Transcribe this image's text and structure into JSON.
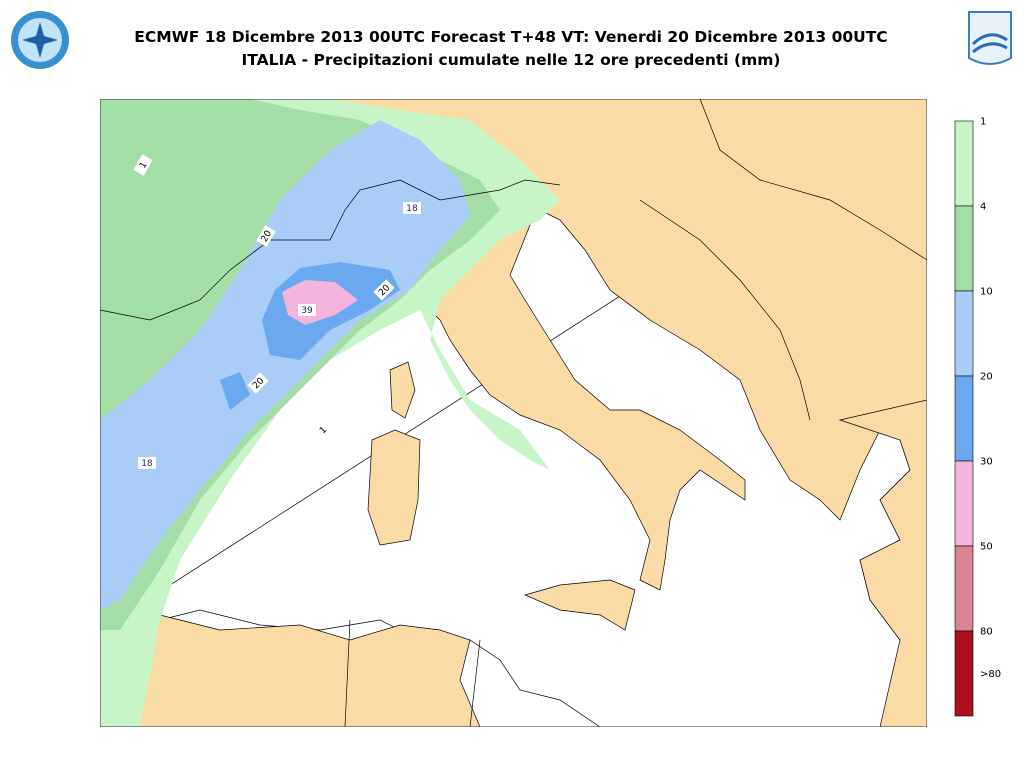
{
  "header": {
    "title_lines": [
      "ECMWF 18 Dicembre 2013 00UTC Forecast T+48 VT: Venerdi 20 Dicembre 2013 00UTC",
      "ITALIA - Precipitazioni cumulate nelle 12 ore precedenti (mm)"
    ]
  },
  "legend": {
    "labels": [
      "1",
      "4",
      "10",
      "20",
      "30",
      "50",
      "80",
      ">80"
    ],
    "colors": [
      "#c8f5c8",
      "#a2dea6",
      "#a9cdf6",
      "#6aa8ef",
      "#f4b5dc",
      "#dc8393",
      "#b00f1e"
    ]
  },
  "map": {
    "contour_labels": [
      "1",
      "20",
      "18",
      "39",
      "20",
      "20",
      "1",
      "18"
    ]
  }
}
